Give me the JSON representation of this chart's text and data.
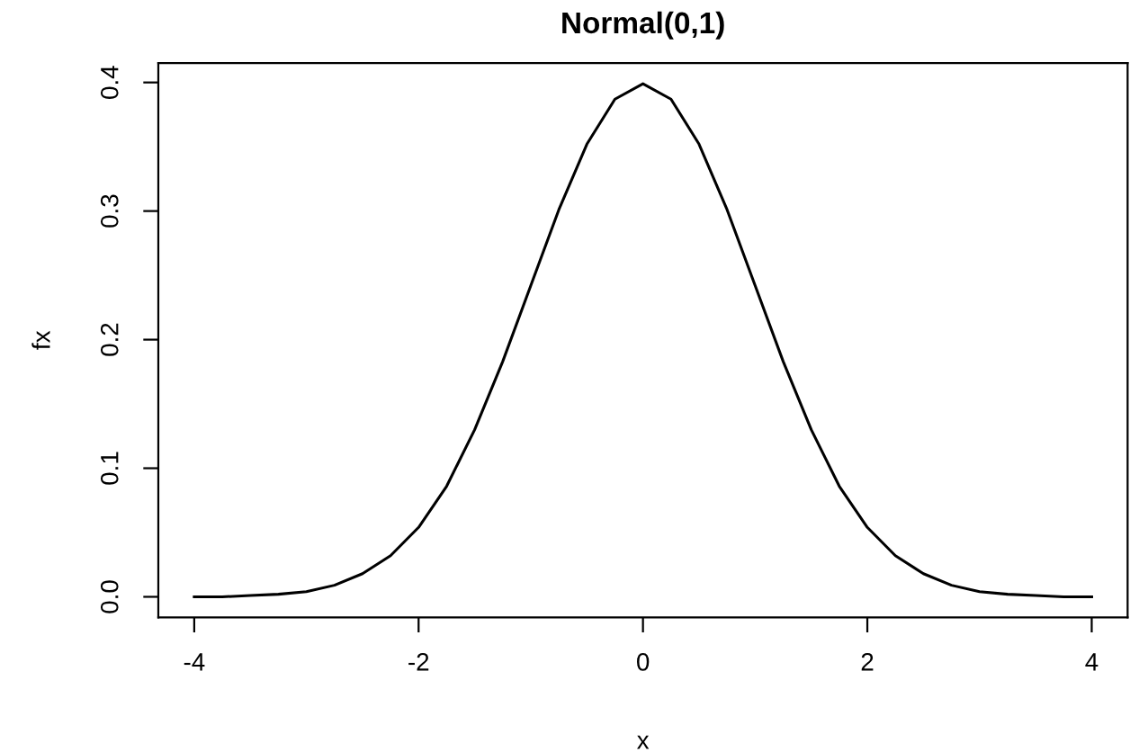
{
  "chart_data": {
    "type": "line",
    "title": "Normal(0,1)",
    "xlabel": "x",
    "ylabel": "fx",
    "x": [
      -4,
      -3.75,
      -3.5,
      -3.25,
      -3,
      -2.75,
      -2.5,
      -2.25,
      -2,
      -1.75,
      -1.5,
      -1.25,
      -1,
      -0.75,
      -0.5,
      -0.25,
      0,
      0.25,
      0.5,
      0.75,
      1,
      1.25,
      1.5,
      1.75,
      2,
      2.25,
      2.5,
      2.75,
      3,
      3.25,
      3.5,
      3.75,
      4
    ],
    "series": [
      {
        "color": "#000000",
        "values": [
          0.0,
          0.0,
          0.001,
          0.002,
          0.004,
          0.009,
          0.018,
          0.032,
          0.054,
          0.086,
          0.13,
          0.183,
          0.242,
          0.301,
          0.352,
          0.387,
          0.399,
          0.387,
          0.352,
          0.301,
          0.242,
          0.183,
          0.13,
          0.086,
          0.054,
          0.032,
          0.018,
          0.009,
          0.004,
          0.002,
          0.001,
          0.0,
          0.0
        ]
      }
    ],
    "xlim": [
      -4.32,
      4.32
    ],
    "ylim": [
      -0.016,
      0.415
    ],
    "xticks": [
      -4,
      -2,
      0,
      2,
      4
    ],
    "yticks": [
      {
        "value": 0,
        "label": "0.0"
      },
      0.1,
      0.2,
      0.3,
      0.4
    ],
    "grid": false,
    "marker": "none",
    "line_style": "solid"
  }
}
